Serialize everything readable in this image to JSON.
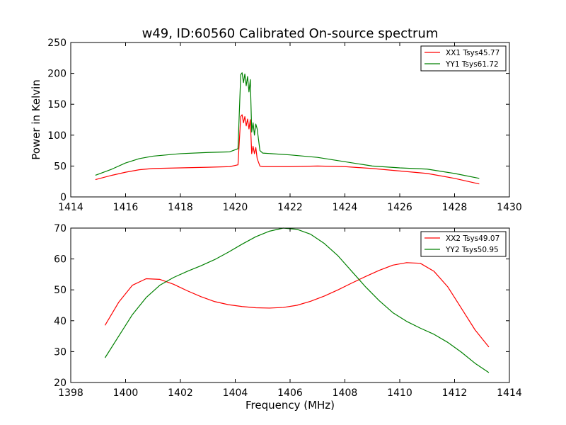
{
  "chart_data": [
    {
      "type": "line",
      "title": "w49, ID:60560 Calibrated On-source spectrum",
      "xlabel": "",
      "ylabel": "Power in Kelvin",
      "xlim": [
        1414,
        1430
      ],
      "ylim": [
        0,
        250
      ],
      "xticks": [
        "1414",
        "1416",
        "1418",
        "1420",
        "1422",
        "1424",
        "1426",
        "1428",
        "1430"
      ],
      "yticks": [
        "0",
        "50",
        "100",
        "150",
        "200",
        "250"
      ],
      "legend": "top-right",
      "series": [
        {
          "name": "XX1 Tsys45.77",
          "color": "#ff0000",
          "x": [
            1414.9,
            1415.5,
            1416,
            1416.5,
            1417,
            1418,
            1419,
            1419.8,
            1420.1,
            1420.2,
            1420.25,
            1420.3,
            1420.35,
            1420.4,
            1420.45,
            1420.5,
            1420.55,
            1420.6,
            1420.65,
            1420.7,
            1420.75,
            1420.8,
            1420.9,
            1421,
            1422,
            1423,
            1424,
            1425,
            1426,
            1427,
            1428,
            1428.9
          ],
          "y": [
            28,
            35,
            40,
            44,
            46,
            47,
            48,
            49,
            52,
            130,
            133,
            120,
            130,
            115,
            126,
            110,
            125,
            70,
            82,
            70,
            80,
            62,
            50,
            49,
            49,
            50,
            49,
            46,
            42,
            38,
            30,
            21
          ]
        },
        {
          "name": "YY1 Tsys61.72",
          "color": "#008000",
          "x": [
            1414.9,
            1415.5,
            1416,
            1416.5,
            1417,
            1418,
            1419,
            1419.8,
            1420.1,
            1420.2,
            1420.25,
            1420.3,
            1420.35,
            1420.4,
            1420.45,
            1420.5,
            1420.55,
            1420.6,
            1420.65,
            1420.7,
            1420.75,
            1420.8,
            1420.9,
            1421,
            1422,
            1423,
            1424,
            1425,
            1426,
            1427,
            1428,
            1428.9
          ],
          "y": [
            35,
            45,
            55,
            62,
            66,
            70,
            72,
            73,
            78,
            198,
            201,
            185,
            199,
            180,
            195,
            170,
            190,
            105,
            120,
            100,
            118,
            110,
            75,
            71,
            68,
            64,
            57,
            50,
            47,
            45,
            38,
            30
          ]
        }
      ]
    },
    {
      "type": "line",
      "title": "",
      "xlabel": "Frequency (MHz)",
      "ylabel": "",
      "xlim": [
        1398,
        1414
      ],
      "ylim": [
        20,
        70
      ],
      "xticks": [
        "1398",
        "1400",
        "1402",
        "1404",
        "1406",
        "1408",
        "1410",
        "1412",
        "1414"
      ],
      "yticks": [
        "20",
        "30",
        "40",
        "50",
        "60",
        "70"
      ],
      "legend": "top-right",
      "series": [
        {
          "name": "XX2 Tsys49.07",
          "color": "#ff0000",
          "x": [
            1399.25,
            1399.75,
            1400.25,
            1400.75,
            1401.25,
            1401.75,
            1402.25,
            1402.75,
            1403.25,
            1403.75,
            1404.25,
            1404.75,
            1405.25,
            1405.75,
            1406.25,
            1406.75,
            1407.25,
            1407.75,
            1408.25,
            1408.75,
            1409.25,
            1409.75,
            1410.25,
            1410.75,
            1411.25,
            1411.75,
            1412.25,
            1412.75,
            1413.25
          ],
          "y": [
            38.5,
            46,
            51.5,
            53.6,
            53.4,
            51.8,
            49.7,
            47.8,
            46.2,
            45.2,
            44.6,
            44.2,
            44.1,
            44.3,
            45,
            46.3,
            48,
            50,
            52.2,
            54.3,
            56.3,
            58,
            58.8,
            58.6,
            56,
            51,
            44,
            37,
            31.5
          ]
        },
        {
          "name": "YY2 Tsys50.95",
          "color": "#008000",
          "x": [
            1399.25,
            1399.75,
            1400.25,
            1400.75,
            1401.25,
            1401.75,
            1402.25,
            1402.75,
            1403.25,
            1403.75,
            1404.25,
            1404.75,
            1405.25,
            1405.75,
            1406.25,
            1406.75,
            1407.25,
            1407.75,
            1408.25,
            1408.75,
            1409.25,
            1409.75,
            1410.25,
            1410.75,
            1411.25,
            1411.75,
            1412.25,
            1412.75,
            1413.25
          ],
          "y": [
            28,
            35,
            42,
            47.5,
            51.5,
            54,
            56,
            57.8,
            59.8,
            62.2,
            64.8,
            67.2,
            69,
            70,
            69.6,
            68,
            65,
            61,
            56,
            51,
            46.5,
            42.6,
            39.8,
            37.6,
            35.6,
            33,
            29.8,
            26.2,
            23.2
          ]
        }
      ]
    }
  ]
}
